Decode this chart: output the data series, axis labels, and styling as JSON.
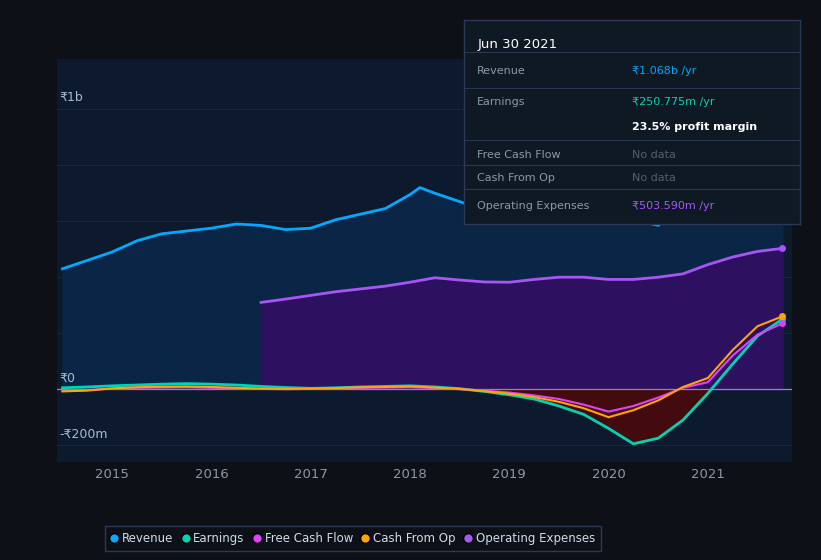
{
  "bg_color": "#0d1117",
  "plot_bg_color": "#0d1a2e",
  "grid_color": "#1a2a3f",
  "ylabel_1b": "₹1b",
  "ylabel_0": "₹0",
  "ylabel_neg200": "-₹200m",
  "x_labels": [
    "2015",
    "2016",
    "2017",
    "2018",
    "2019",
    "2020",
    "2021"
  ],
  "legend_items": [
    {
      "label": "Revenue",
      "color": "#00aaff"
    },
    {
      "label": "Earnings",
      "color": "#00d4b4"
    },
    {
      "label": "Free Cash Flow",
      "color": "#e040fb"
    },
    {
      "label": "Cash From Op",
      "color": "#ffa500"
    },
    {
      "label": "Operating Expenses",
      "color": "#a855f7"
    }
  ],
  "info_box": {
    "date": "Jun 30 2021",
    "rows": [
      {
        "label": "Revenue",
        "value": "₹1.068b /yr",
        "value_color": "#00aaff"
      },
      {
        "label": "Earnings",
        "value": "₹250.775m /yr",
        "value_color": "#00d4b4"
      },
      {
        "label": "",
        "value": "23.5% profit margin",
        "value_color": "#ffffff"
      },
      {
        "label": "Free Cash Flow",
        "value": "No data",
        "value_color": "#555e6e"
      },
      {
        "label": "Cash From Op",
        "value": "No data",
        "value_color": "#555e6e"
      },
      {
        "label": "Operating Expenses",
        "value": "₹503.590m /yr",
        "value_color": "#a855f7"
      }
    ]
  },
  "revenue": {
    "x": [
      2014.5,
      2014.75,
      2015.0,
      2015.25,
      2015.5,
      2015.75,
      2016.0,
      2016.25,
      2016.5,
      2016.75,
      2017.0,
      2017.25,
      2017.5,
      2017.75,
      2018.0,
      2018.1,
      2018.25,
      2018.5,
      2018.75,
      2019.0,
      2019.25,
      2019.5,
      2019.75,
      2020.0,
      2020.25,
      2020.5,
      2020.75,
      2021.0,
      2021.25,
      2021.5,
      2021.75
    ],
    "y": [
      430,
      460,
      490,
      530,
      555,
      565,
      575,
      590,
      585,
      570,
      575,
      605,
      625,
      645,
      695,
      720,
      700,
      670,
      640,
      625,
      615,
      605,
      598,
      598,
      605,
      585,
      660,
      810,
      940,
      1020,
      1068
    ],
    "color": "#00aaff",
    "fill_color": "#0a2545",
    "lw": 2.0
  },
  "operating_expenses": {
    "x": [
      2016.5,
      2016.5,
      2016.75,
      2017.0,
      2017.25,
      2017.5,
      2017.75,
      2018.0,
      2018.25,
      2018.5,
      2018.75,
      2019.0,
      2019.25,
      2019.5,
      2019.75,
      2020.0,
      2020.25,
      2020.5,
      2020.75,
      2021.0,
      2021.25,
      2021.5,
      2021.75
    ],
    "y": [
      0,
      310,
      322,
      335,
      348,
      358,
      368,
      382,
      398,
      390,
      383,
      382,
      392,
      400,
      400,
      392,
      392,
      400,
      412,
      445,
      472,
      492,
      503
    ],
    "color": "#a855f7",
    "fill_color": "#2d1060",
    "lw": 2.0
  },
  "earnings": {
    "x": [
      2014.5,
      2014.75,
      2015.0,
      2015.25,
      2015.5,
      2015.75,
      2016.0,
      2016.25,
      2016.5,
      2016.75,
      2017.0,
      2017.25,
      2017.5,
      2017.75,
      2018.0,
      2018.25,
      2018.5,
      2018.75,
      2019.0,
      2019.25,
      2019.5,
      2019.75,
      2020.0,
      2020.25,
      2020.5,
      2020.75,
      2021.0,
      2021.25,
      2021.5,
      2021.75
    ],
    "y": [
      5,
      8,
      12,
      15,
      18,
      20,
      18,
      15,
      10,
      6,
      3,
      5,
      8,
      10,
      12,
      8,
      2,
      -8,
      -20,
      -35,
      -60,
      -90,
      -140,
      -195,
      -175,
      -110,
      -15,
      90,
      190,
      250
    ],
    "color": "#00d4b4",
    "fill_neg_color": "#4a0a0a",
    "lw": 2.0
  },
  "free_cash_flow": {
    "x": [
      2014.5,
      2014.75,
      2015.0,
      2015.25,
      2015.5,
      2015.75,
      2016.0,
      2016.25,
      2016.5,
      2016.75,
      2017.0,
      2017.25,
      2017.5,
      2017.75,
      2018.0,
      2018.25,
      2018.5,
      2018.75,
      2019.0,
      2019.25,
      2019.5,
      2019.75,
      2020.0,
      2020.25,
      2020.5,
      2020.75,
      2021.0,
      2021.25,
      2021.5,
      2021.75
    ],
    "y": [
      -5,
      -3,
      2,
      5,
      6,
      7,
      5,
      3,
      1,
      0,
      1,
      3,
      5,
      6,
      7,
      4,
      0,
      -5,
      -12,
      -22,
      -35,
      -55,
      -80,
      -60,
      -30,
      5,
      25,
      120,
      195,
      235
    ],
    "color": "#e040fb",
    "lw": 1.5
  },
  "cash_from_op": {
    "x": [
      2014.5,
      2014.75,
      2015.0,
      2015.25,
      2015.5,
      2015.75,
      2016.0,
      2016.25,
      2016.5,
      2016.75,
      2017.0,
      2017.25,
      2017.5,
      2017.75,
      2018.0,
      2018.25,
      2018.5,
      2018.75,
      2019.0,
      2019.25,
      2019.5,
      2019.75,
      2020.0,
      2020.25,
      2020.5,
      2020.75,
      2021.0,
      2021.25,
      2021.5,
      2021.75
    ],
    "y": [
      -8,
      -5,
      3,
      7,
      9,
      10,
      8,
      5,
      2,
      1,
      2,
      4,
      7,
      8,
      10,
      6,
      1,
      -7,
      -16,
      -28,
      -45,
      -68,
      -100,
      -75,
      -40,
      8,
      40,
      140,
      225,
      260
    ],
    "color": "#ffa500",
    "lw": 1.5
  },
  "ylim": [
    -260,
    1180
  ],
  "xlim": [
    2014.45,
    2021.85
  ],
  "tick_positions": [
    2015,
    2016,
    2017,
    2018,
    2019,
    2020,
    2021
  ],
  "y_zero": 0,
  "y_1b": 1000,
  "y_neg200": -200
}
